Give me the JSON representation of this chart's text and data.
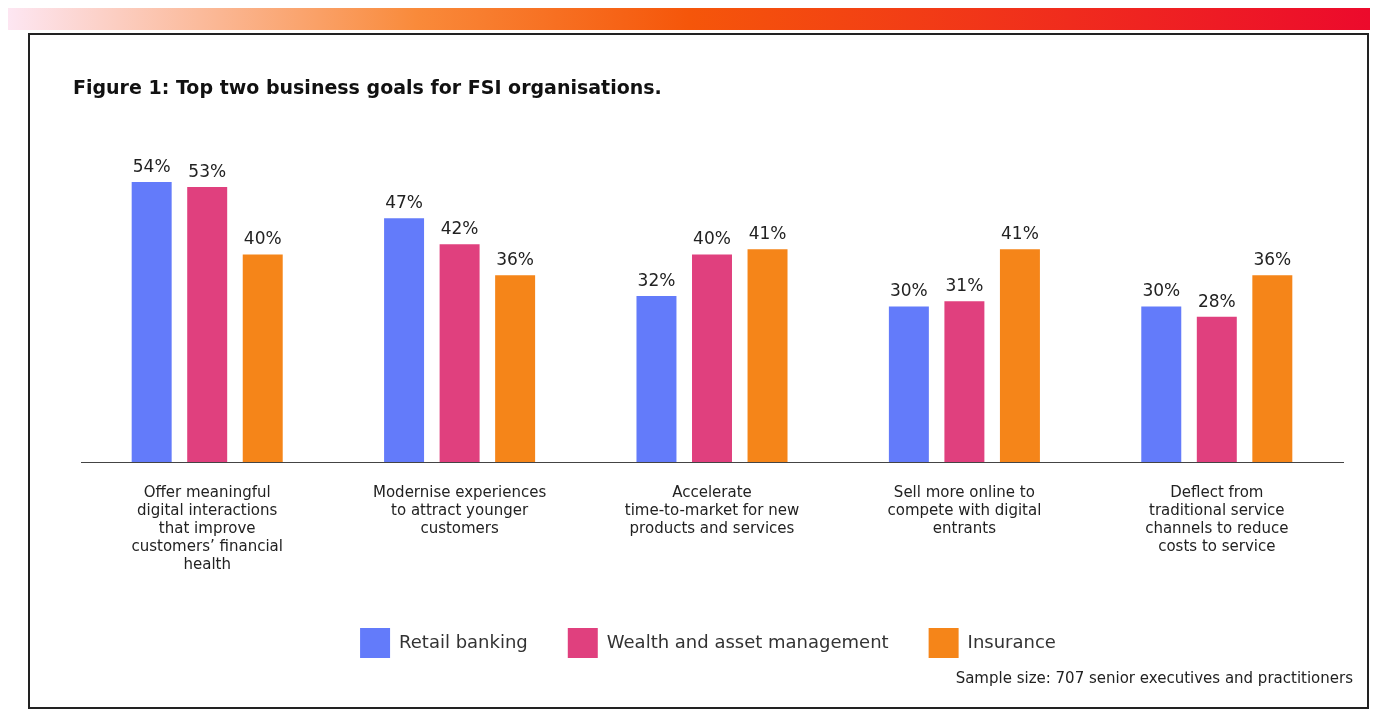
{
  "chart_data": {
    "type": "bar",
    "title": "Figure 1: Top two business goals for FSI organisations.",
    "categories": [
      "Offer meaningful digital interactions that improve customers’ financial health",
      "Modernise experiences to attract younger customers",
      "Accelerate time-to-market for new products and services",
      "Sell more online to compete with digital entrants",
      "Deflect from traditional service channels to reduce costs to service"
    ],
    "series": [
      {
        "name": "Retail banking",
        "color": "#637bfa",
        "values": [
          54,
          47,
          32,
          30,
          30
        ],
        "value_labels": [
          "54%",
          "47%",
          "32%",
          "30%",
          "30%"
        ]
      },
      {
        "name": "Wealth and asset management",
        "color": "#e0407e",
        "values": [
          53,
          42,
          40,
          31,
          28
        ],
        "value_labels": [
          "53%",
          "42%",
          "40%",
          "31%",
          "28%"
        ]
      },
      {
        "name": "Insurance",
        "color": "#f58519",
        "values": [
          40,
          36,
          41,
          41,
          36
        ],
        "value_labels": [
          "40%",
          "36%",
          "41%",
          "41%",
          "36%"
        ]
      }
    ],
    "tick_labels": "x",
    "grid": false,
    "legend": "bottom",
    "annotations": [
      "Sample size: 707 senior executives and practitioners"
    ]
  }
}
